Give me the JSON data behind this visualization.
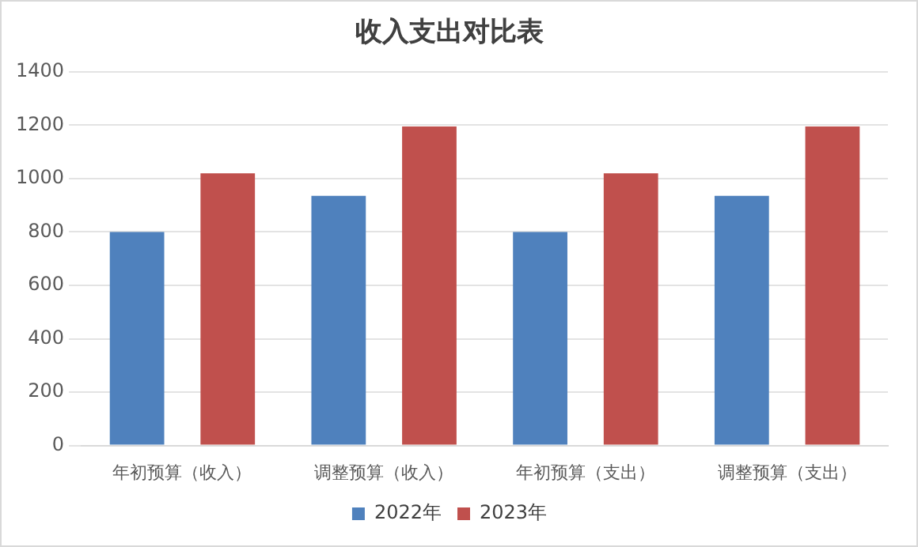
{
  "chart_data": {
    "type": "bar",
    "title": "收入支出对比表",
    "categories": [
      "年初预算（收入）",
      "调整预算（收入）",
      "年初预算（支出）",
      "调整预算（支出）"
    ],
    "series": [
      {
        "name": "2022年",
        "color": "#4f81bd",
        "values": [
          800,
          935,
          800,
          935
        ]
      },
      {
        "name": "2023年",
        "color": "#c0504d",
        "values": [
          1020,
          1195,
          1020,
          1195
        ]
      }
    ],
    "ylim": [
      0,
      1400
    ],
    "yticks": [
      0,
      200,
      400,
      600,
      800,
      1000,
      1200,
      1400
    ],
    "grid": "y",
    "legend": "bottom"
  }
}
